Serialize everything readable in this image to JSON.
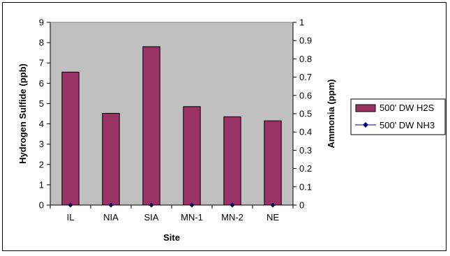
{
  "chart_data": {
    "type": "bar",
    "title": "",
    "xlabel": "Site",
    "ylabel": "Hydrogen Sulfide (ppb)",
    "y2label": "Ammonia (ppm)",
    "categories": [
      "IL",
      "NIA",
      "SIA",
      "MN-1",
      "MN-2",
      "NE"
    ],
    "ylim": [
      0,
      9
    ],
    "yticks": [
      "0",
      "1",
      "2",
      "3",
      "4",
      "5",
      "6",
      "7",
      "8",
      "9"
    ],
    "y2lim": [
      0,
      1
    ],
    "y2ticks": [
      "0",
      "0.1",
      "0.2",
      "0.3",
      "0.4",
      "0.5",
      "0.6",
      "0.7",
      "0.8",
      "0.9",
      "1"
    ],
    "series": [
      {
        "name": "500' DW H2S",
        "kind": "bar",
        "axis": "left",
        "values": [
          6.55,
          4.52,
          7.8,
          4.85,
          4.35,
          4.15
        ],
        "color": "#993366"
      },
      {
        "name": "500' DW NH3",
        "kind": "line",
        "axis": "right",
        "values": [
          0,
          0,
          0,
          0,
          0,
          0
        ],
        "color": "#000080"
      }
    ],
    "plot_background": "#c0c0c0",
    "grid": false,
    "legend_position": "right"
  }
}
